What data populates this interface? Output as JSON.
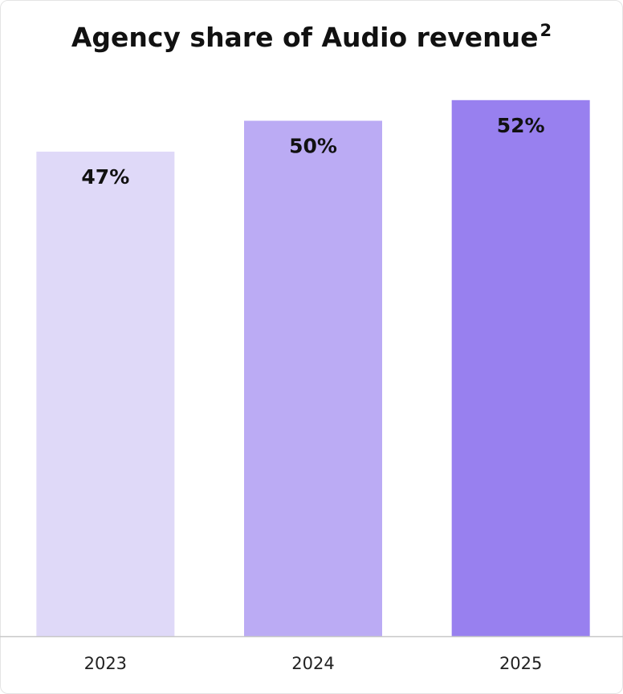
{
  "chart_data": {
    "type": "bar",
    "title": "Agency share of Audio revenue",
    "title_superscript": "2",
    "categories": [
      "2023",
      "2024",
      "2025"
    ],
    "values": [
      47,
      50,
      52
    ],
    "data_labels": [
      "47%",
      "50%",
      "52%"
    ],
    "unit": "%",
    "ylim": [
      0,
      56.2
    ],
    "grid": false,
    "legend": "none",
    "colors": [
      "#dfd9f8",
      "#bbabf4",
      "#9880ef"
    ],
    "axis_color": "#c8c8c8"
  }
}
